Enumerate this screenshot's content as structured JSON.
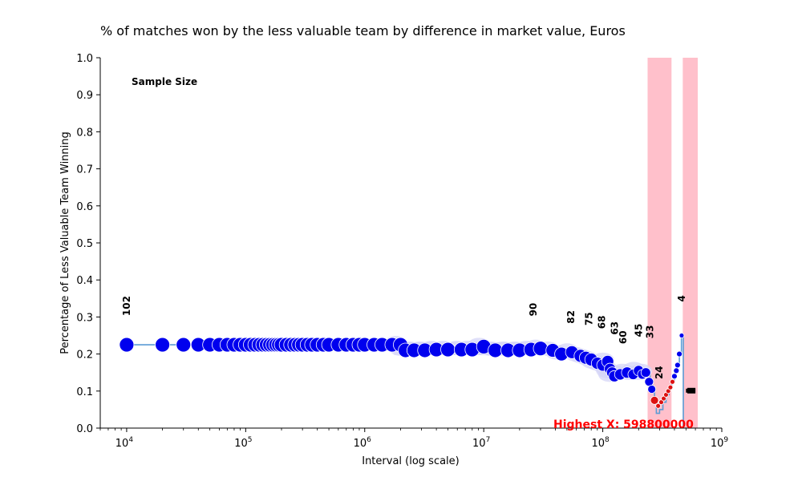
{
  "chart_data": {
    "type": "scatter",
    "title": "% of matches won by the less valuable team by difference in market value, Euros",
    "xlabel": "Interval (log scale)",
    "ylabel": "Percentage of Less Valuable Team Winning",
    "xscale": "log",
    "xlim": [
      6000,
      1000000000
    ],
    "ylim": [
      0,
      1.0
    ],
    "x_ticks": [
      {
        "value": 10000,
        "base": "10",
        "exp": "4"
      },
      {
        "value": 100000,
        "base": "10",
        "exp": "5"
      },
      {
        "value": 1000000,
        "base": "10",
        "exp": "6"
      },
      {
        "value": 10000000,
        "base": "10",
        "exp": "7"
      },
      {
        "value": 100000000,
        "base": "10",
        "exp": "8"
      },
      {
        "value": 1000000000,
        "base": "10",
        "exp": "9"
      }
    ],
    "y_ticks": [
      "0.0",
      "0.1",
      "0.2",
      "0.3",
      "0.4",
      "0.5",
      "0.6",
      "0.7",
      "0.8",
      "0.9",
      "1.0"
    ],
    "sample_size_label": "Sample Size",
    "sample_size_annotations": [
      {
        "x": 10000,
        "y": 0.33,
        "text": "102"
      },
      {
        "x": 26000000,
        "y": 0.32,
        "text": "90"
      },
      {
        "x": 54000000,
        "y": 0.3,
        "text": "82"
      },
      {
        "x": 77000000,
        "y": 0.295,
        "text": "75"
      },
      {
        "x": 98000000,
        "y": 0.286,
        "text": "68"
      },
      {
        "x": 126000000,
        "y": 0.27,
        "text": "63"
      },
      {
        "x": 148000000,
        "y": 0.245,
        "text": "60"
      },
      {
        "x": 200000000,
        "y": 0.264,
        "text": "45"
      },
      {
        "x": 250000000,
        "y": 0.26,
        "text": "33"
      },
      {
        "x": 298000000,
        "y": 0.15,
        "text": "24"
      },
      {
        "x": 460000000,
        "y": 0.35,
        "text": "4"
      }
    ],
    "highlight_bands": [
      {
        "x_start": 238000000,
        "x_end": 378000000
      },
      {
        "x_start": 470000000,
        "x_end": 628000000
      }
    ],
    "highest_x_label": "Highest X: 598800000",
    "highest_x_value": 598800000,
    "step_line": [
      [
        10000,
        0.225
      ],
      [
        2100000,
        0.225
      ],
      [
        2200000,
        0.21
      ],
      [
        3000000,
        0.21
      ],
      [
        3100000,
        0.212
      ],
      [
        8000000,
        0.212
      ],
      [
        8200000,
        0.215
      ],
      [
        30000000,
        0.215
      ],
      [
        31000000,
        0.21
      ],
      [
        45000000,
        0.205
      ],
      [
        65000000,
        0.195
      ],
      [
        80000000,
        0.185
      ],
      [
        90000000,
        0.175
      ],
      [
        105000000,
        0.17
      ],
      [
        115000000,
        0.155
      ],
      [
        125000000,
        0.135
      ],
      [
        150000000,
        0.14
      ],
      [
        180000000,
        0.15
      ],
      [
        210000000,
        0.155
      ],
      [
        230000000,
        0.145
      ],
      [
        250000000,
        0.12
      ],
      [
        262000000,
        0.1
      ],
      [
        272000000,
        0.075
      ],
      [
        282000000,
        0.04
      ],
      [
        300000000,
        0.05
      ],
      [
        320000000,
        0.07
      ],
      [
        340000000,
        0.09
      ],
      [
        360000000,
        0.11
      ],
      [
        380000000,
        0.13
      ],
      [
        400000000,
        0.15
      ],
      [
        420000000,
        0.17
      ],
      [
        440000000,
        0.2
      ],
      [
        458000000,
        0.25
      ],
      [
        470000000,
        0.25
      ],
      [
        475000000,
        0.0
      ]
    ],
    "points": [
      [
        10000,
        0.225,
        9
      ],
      [
        20000,
        0.225,
        9
      ],
      [
        30000,
        0.225,
        9
      ],
      [
        40000,
        0.225,
        9
      ],
      [
        50000,
        0.225,
        9
      ],
      [
        60000,
        0.225,
        9
      ],
      [
        70000,
        0.225,
        9
      ],
      [
        80000,
        0.225,
        9
      ],
      [
        90000,
        0.225,
        9
      ],
      [
        100000,
        0.225,
        9
      ],
      [
        110000,
        0.225,
        9
      ],
      [
        120000,
        0.225,
        9
      ],
      [
        130000,
        0.225,
        9
      ],
      [
        140000,
        0.225,
        9
      ],
      [
        150000,
        0.225,
        9
      ],
      [
        160000,
        0.225,
        9
      ],
      [
        170000,
        0.225,
        9
      ],
      [
        180000,
        0.225,
        9
      ],
      [
        190000,
        0.225,
        9
      ],
      [
        200000,
        0.225,
        9
      ],
      [
        220000,
        0.225,
        9
      ],
      [
        240000,
        0.225,
        9
      ],
      [
        260000,
        0.225,
        9
      ],
      [
        280000,
        0.225,
        9
      ],
      [
        300000,
        0.225,
        9
      ],
      [
        330000,
        0.225,
        9
      ],
      [
        360000,
        0.225,
        9
      ],
      [
        400000,
        0.225,
        9
      ],
      [
        450000,
        0.225,
        9
      ],
      [
        500000,
        0.225,
        9
      ],
      [
        600000,
        0.225,
        9
      ],
      [
        700000,
        0.225,
        9
      ],
      [
        800000,
        0.225,
        9
      ],
      [
        900000,
        0.225,
        9
      ],
      [
        1000000,
        0.225,
        9
      ],
      [
        1200000,
        0.225,
        9
      ],
      [
        1400000,
        0.225,
        9
      ],
      [
        1700000,
        0.225,
        9
      ],
      [
        2000000,
        0.225,
        9
      ],
      [
        2200000,
        0.21,
        9
      ],
      [
        2600000,
        0.21,
        9
      ],
      [
        3200000,
        0.21,
        9
      ],
      [
        4000000,
        0.212,
        9
      ],
      [
        5000000,
        0.212,
        9
      ],
      [
        6500000,
        0.212,
        9
      ],
      [
        8000000,
        0.212,
        9
      ],
      [
        10000000,
        0.22,
        9
      ],
      [
        12500000,
        0.21,
        9
      ],
      [
        16000000,
        0.21,
        9
      ],
      [
        20000000,
        0.21,
        9
      ],
      [
        25000000,
        0.212,
        9
      ],
      [
        30000000,
        0.215,
        9
      ],
      [
        38000000,
        0.21,
        8.5
      ],
      [
        45000000,
        0.2,
        8.5
      ],
      [
        55000000,
        0.205,
        8
      ],
      [
        65000000,
        0.195,
        8
      ],
      [
        72000000,
        0.19,
        8
      ],
      [
        80000000,
        0.185,
        8
      ],
      [
        90000000,
        0.175,
        7.5
      ],
      [
        100000000,
        0.17,
        7.5
      ],
      [
        110000000,
        0.18,
        7.5
      ],
      [
        115000000,
        0.16,
        7
      ],
      [
        120000000,
        0.15,
        7
      ],
      [
        125000000,
        0.14,
        7
      ],
      [
        140000000,
        0.145,
        7
      ],
      [
        160000000,
        0.15,
        7
      ],
      [
        180000000,
        0.145,
        6.5
      ],
      [
        200000000,
        0.155,
        6.5
      ],
      [
        215000000,
        0.145,
        6
      ],
      [
        230000000,
        0.15,
        6
      ],
      [
        245000000,
        0.125,
        5.5
      ],
      [
        258000000,
        0.105,
        5
      ],
      [
        272000000,
        0.075,
        5,
        "red"
      ],
      [
        292000000,
        0.06,
        3,
        "red"
      ],
      [
        310000000,
        0.07,
        3,
        "red"
      ],
      [
        325000000,
        0.08,
        3,
        "red"
      ],
      [
        340000000,
        0.09,
        3,
        "red"
      ],
      [
        355000000,
        0.1,
        3,
        "red"
      ],
      [
        370000000,
        0.11,
        3,
        "red"
      ],
      [
        385000000,
        0.125,
        3,
        "red"
      ],
      [
        400000000,
        0.14,
        3.5
      ],
      [
        415000000,
        0.155,
        3.5
      ],
      [
        425000000,
        0.17,
        3.5
      ],
      [
        440000000,
        0.2,
        3.5
      ],
      [
        460000000,
        0.25,
        3
      ]
    ],
    "bar_marker": {
      "x_start": 500000000,
      "x_end": 600000000,
      "y": 0.1
    }
  }
}
